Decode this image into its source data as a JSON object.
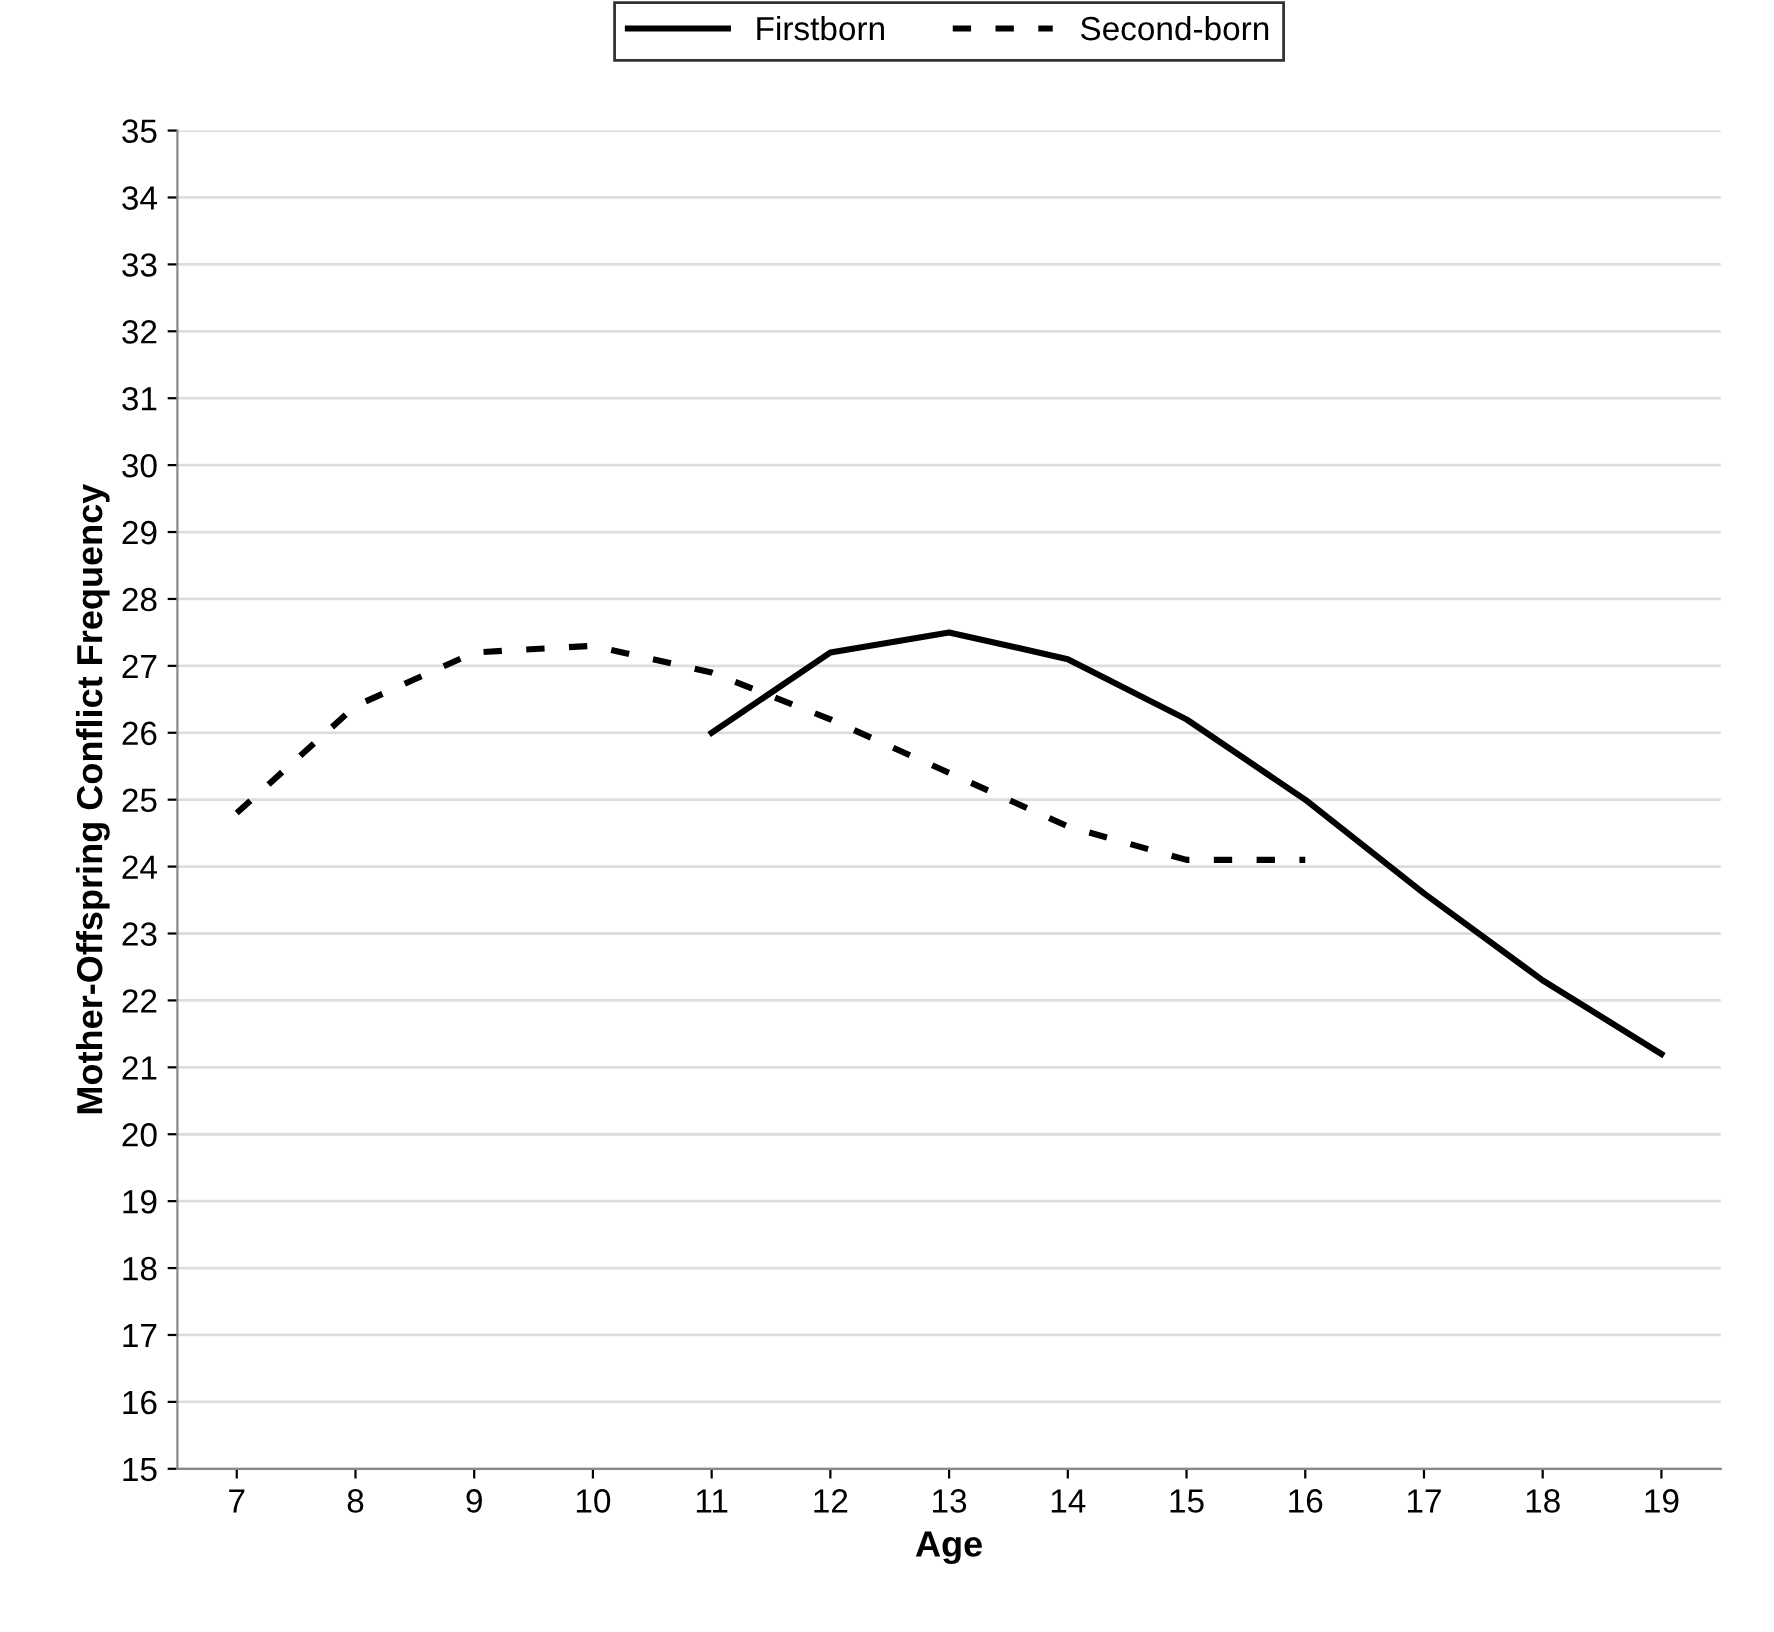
{
  "chart_data": {
    "type": "line",
    "xlabel": "Age",
    "ylabel": "Mother-Offspring Conflict Frequency",
    "categories": [
      "7",
      "8",
      "9",
      "10",
      "11",
      "12",
      "13",
      "14",
      "15",
      "16",
      "17",
      "18",
      "19"
    ],
    "series": [
      {
        "name": "Firstborn",
        "color": "#000000",
        "line_style": "solid",
        "values": [
          null,
          null,
          null,
          null,
          26.0,
          27.2,
          27.5,
          27.1,
          26.2,
          25.0,
          23.6,
          22.3,
          21.2
        ]
      },
      {
        "name": "Second-born",
        "color": "#000000",
        "line_style": "dashed",
        "values": [
          24.8,
          26.4,
          27.2,
          27.3,
          26.9,
          26.2,
          25.4,
          24.6,
          24.1,
          24.1,
          null,
          null,
          null
        ]
      }
    ],
    "ylim": [
      15,
      35
    ],
    "yticks": [
      15,
      16,
      17,
      18,
      19,
      20,
      21,
      22,
      23,
      24,
      25,
      26,
      27,
      28,
      29,
      30,
      31,
      32,
      33,
      34,
      35
    ],
    "grid": "y",
    "legend": "top",
    "marker": "none"
  }
}
